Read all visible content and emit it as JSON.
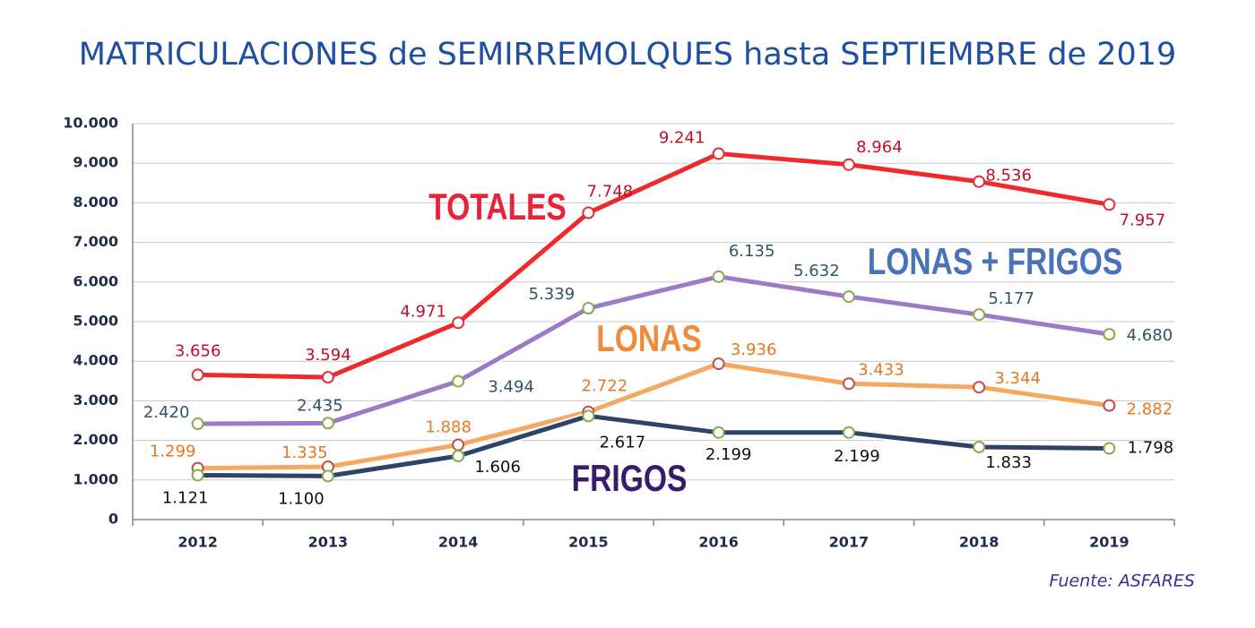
{
  "chart_data": {
    "type": "line",
    "title": "MATRICULACIONES de SEMIRREMOLQUES hasta SEPTIEMBRE de 2019",
    "source": "Fuente: ASFARES",
    "categories": [
      "2012",
      "2013",
      "2014",
      "2015",
      "2016",
      "2017",
      "2018",
      "2019"
    ],
    "ylim": [
      0,
      10000
    ],
    "yticks": [
      0,
      {
        "value": 1000,
        "label": "1.000"
      },
      {
        "value": 2000,
        "label": "2.000"
      },
      {
        "value": 3000,
        "label": "3.000"
      },
      {
        "value": 4000,
        "label": "4.000"
      },
      {
        "value": 5000,
        "label": "5.000"
      },
      {
        "value": 6000,
        "label": "6.000"
      },
      {
        "value": 7000,
        "label": "7.000"
      },
      {
        "value": 8000,
        "label": "8.000"
      },
      {
        "value": 9000,
        "label": "9.000"
      },
      {
        "value": 10000,
        "label": "10.000"
      }
    ],
    "grid": true,
    "series": [
      {
        "name": "TOTALES",
        "color": "#f02a2a",
        "marker_color": "#e0303a",
        "label_color": "#e8233a",
        "value_label_color": "#c0102a",
        "values": [
          3656,
          3594,
          4971,
          7748,
          9241,
          8964,
          8536,
          7957
        ],
        "value_labels": [
          "3.656",
          "3.594",
          "4.971",
          "7.748",
          "9.241",
          "8.964",
          "8.536",
          "7.957"
        ]
      },
      {
        "name": "LONAS + FRIGOS",
        "color": "#9b7ac8",
        "marker_color": "#8caa4a",
        "label_color": "#4a72b8",
        "value_label_color": "#2f5566",
        "values": [
          2420,
          2435,
          3494,
          5339,
          6135,
          5632,
          5177,
          4680
        ],
        "value_labels": [
          "2.420",
          "2.435",
          "3.494",
          "5.339",
          "6.135",
          "5.632",
          "5.177",
          "4.680"
        ]
      },
      {
        "name": "LONAS",
        "color": "#f5a860",
        "marker_color": "#c0504d",
        "label_color": "#ef8b3a",
        "value_label_color": "#e87820",
        "values": [
          1299,
          1335,
          1888,
          2722,
          3936,
          3433,
          3344,
          2882
        ],
        "value_labels": [
          "1.299",
          "1.335",
          "1.888",
          "2.722",
          "3.936",
          "3.433",
          "3.344",
          "2.882"
        ]
      },
      {
        "name": "FRIGOS",
        "color": "#2c4468",
        "marker_color": "#8caa4a",
        "label_color": "#3a1a6a",
        "value_label_color": "#111111",
        "values": [
          1121,
          1100,
          1606,
          2617,
          2199,
          2199,
          1833,
          1798
        ],
        "value_labels": [
          "1.121",
          "1.100",
          "1.606",
          "2.617",
          "2.199",
          "2.199",
          "1.833",
          "1.798"
        ]
      }
    ]
  }
}
